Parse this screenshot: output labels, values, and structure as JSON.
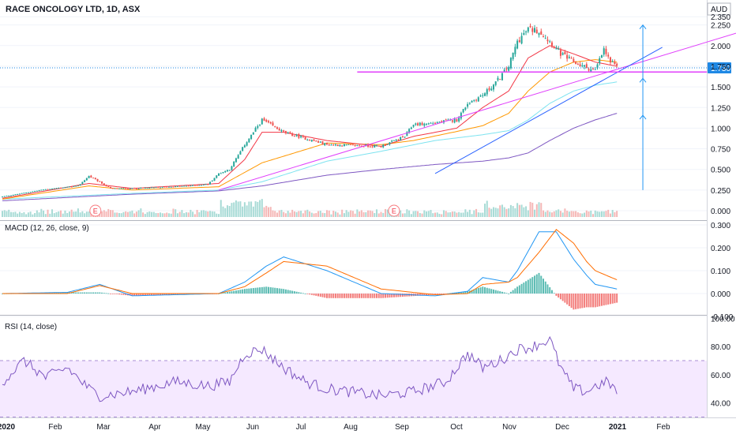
{
  "chart_data": [
    {
      "type": "candlestick",
      "title": "RACE ONCOLOGY LTD, 1D, ASX",
      "currency": "AUD",
      "last_price_label": "1.730",
      "earnings_marker": "E",
      "ylim": [
        -0.05,
        2.35
      ],
      "yticks": [
        "2.350",
        "2.250",
        "2.000",
        "1.750",
        "1.500",
        "1.250",
        "1.000",
        "0.750",
        "0.500",
        "0.250",
        "0.000"
      ],
      "ytick_values": [
        2.35,
        2.25,
        2.0,
        1.75,
        1.5,
        1.25,
        1.0,
        0.75,
        0.5,
        0.25,
        0.0
      ],
      "x_labels": [
        "2020",
        "Feb",
        "Mar",
        "Apr",
        "May",
        "Jun",
        "Jul",
        "Aug",
        "Sep",
        "Oct",
        "Nov",
        "Dec",
        "2021",
        "Feb"
      ],
      "price_keypoints": {
        "t": [
          0,
          20,
          35,
          40,
          50,
          60,
          70,
          85,
          95,
          100,
          105,
          112,
          120,
          130,
          150,
          175,
          186,
          190,
          195,
          210,
          215,
          222,
          228,
          234,
          238,
          243,
          248,
          253,
          258,
          264,
          268,
          274,
          278,
          281,
          284
        ],
        "v": [
          0.17,
          0.26,
          0.3,
          0.42,
          0.27,
          0.27,
          0.28,
          0.3,
          0.32,
          0.45,
          0.5,
          0.8,
          1.1,
          0.95,
          0.8,
          0.78,
          0.9,
          1.05,
          1.05,
          1.1,
          1.3,
          1.4,
          1.55,
          1.75,
          2.05,
          2.2,
          2.18,
          2.05,
          1.9,
          1.8,
          1.75,
          1.7,
          1.95,
          1.8,
          1.73
        ]
      },
      "ema_short_keypoints": {
        "t": [
          0,
          40,
          60,
          100,
          112,
          120,
          130,
          150,
          175,
          190,
          210,
          222,
          234,
          243,
          253,
          264,
          274,
          284
        ],
        "v": [
          0.15,
          0.33,
          0.27,
          0.33,
          0.62,
          0.95,
          0.95,
          0.85,
          0.78,
          0.9,
          1.0,
          1.25,
          1.45,
          1.85,
          2.0,
          1.9,
          1.8,
          1.75
        ]
      },
      "ema_mid_keypoints": {
        "t": [
          0,
          40,
          60,
          100,
          120,
          150,
          175,
          190,
          210,
          222,
          234,
          243,
          253,
          264,
          274,
          284
        ],
        "v": [
          0.14,
          0.3,
          0.25,
          0.29,
          0.58,
          0.82,
          0.8,
          0.85,
          0.96,
          1.03,
          1.18,
          1.45,
          1.68,
          1.8,
          1.83,
          1.8
        ]
      },
      "ema_long1_keypoints": {
        "t": [
          0,
          60,
          100,
          120,
          150,
          175,
          200,
          222,
          234,
          243,
          253,
          264,
          274,
          284
        ],
        "v": [
          0.14,
          0.21,
          0.25,
          0.35,
          0.6,
          0.72,
          0.85,
          0.92,
          0.97,
          1.1,
          1.3,
          1.45,
          1.52,
          1.56
        ]
      },
      "ema_long2_keypoints": {
        "t": [
          0,
          60,
          100,
          120,
          150,
          175,
          200,
          222,
          234,
          243,
          253,
          264,
          274,
          284
        ],
        "v": [
          0.12,
          0.2,
          0.24,
          0.3,
          0.43,
          0.5,
          0.56,
          0.6,
          0.64,
          0.7,
          0.85,
          1.0,
          1.1,
          1.18
        ]
      },
      "horizontal_line": 1.68,
      "arrow_top": 2.25,
      "arrow_mid": 1.68,
      "arrow_low": 0.25,
      "colors": {
        "up": "#26a69a",
        "down": "#ef5350",
        "ema_short": "#f23645",
        "ema_mid": "#ff9800",
        "ema_long1": "#7de3f0",
        "ema_long2": "#7e57c2",
        "trend_magenta": "#e040fb",
        "trend_blue": "#2962ff",
        "last_price": "#1e88e5"
      }
    },
    {
      "type": "line",
      "title": "MACD (12, 26, close, 9)",
      "yticks": [
        "0.300",
        "0.200",
        "0.100",
        "0.000",
        "-0.100"
      ],
      "ytick_values": [
        0.3,
        0.2,
        0.1,
        0.0,
        -0.1
      ],
      "macd_keypoints": {
        "t": [
          0,
          30,
          45,
          60,
          100,
          112,
          122,
          130,
          150,
          175,
          200,
          215,
          222,
          234,
          238,
          248,
          256,
          264,
          270,
          274,
          284
        ],
        "v": [
          0.0,
          0.005,
          0.04,
          -0.01,
          0.0,
          0.05,
          0.12,
          0.16,
          0.1,
          0.0,
          -0.01,
          0.01,
          0.07,
          0.05,
          0.1,
          0.27,
          0.27,
          0.15,
          0.08,
          0.04,
          0.02
        ]
      },
      "signal_keypoints": {
        "t": [
          0,
          30,
          45,
          60,
          100,
          112,
          122,
          130,
          150,
          175,
          200,
          215,
          222,
          234,
          238,
          248,
          256,
          264,
          270,
          274,
          284
        ],
        "v": [
          0.0,
          0.0,
          0.035,
          0.0,
          0.0,
          0.03,
          0.09,
          0.14,
          0.12,
          0.02,
          -0.005,
          0.0,
          0.04,
          0.05,
          0.07,
          0.18,
          0.28,
          0.22,
          0.14,
          0.1,
          0.06
        ]
      }
    },
    {
      "type": "line",
      "title": "RSI (14, close)",
      "yticks": [
        "100.00",
        "80.00",
        "60.00",
        "40.00"
      ],
      "ytick_values": [
        100,
        80,
        60,
        40
      ],
      "band": [
        30,
        70
      ],
      "rsi_keypoints": {
        "t": [
          0,
          10,
          20,
          30,
          40,
          45,
          60,
          80,
          95,
          105,
          112,
          120,
          130,
          140,
          150,
          160,
          175,
          190,
          205,
          215,
          222,
          230,
          238,
          245,
          253,
          258,
          264,
          270,
          274,
          280,
          284
        ],
        "v": [
          55,
          70,
          58,
          65,
          50,
          45,
          48,
          55,
          52,
          55,
          75,
          78,
          65,
          55,
          50,
          48,
          45,
          48,
          55,
          75,
          65,
          70,
          78,
          80,
          85,
          65,
          50,
          48,
          52,
          55,
          48
        ]
      }
    }
  ]
}
